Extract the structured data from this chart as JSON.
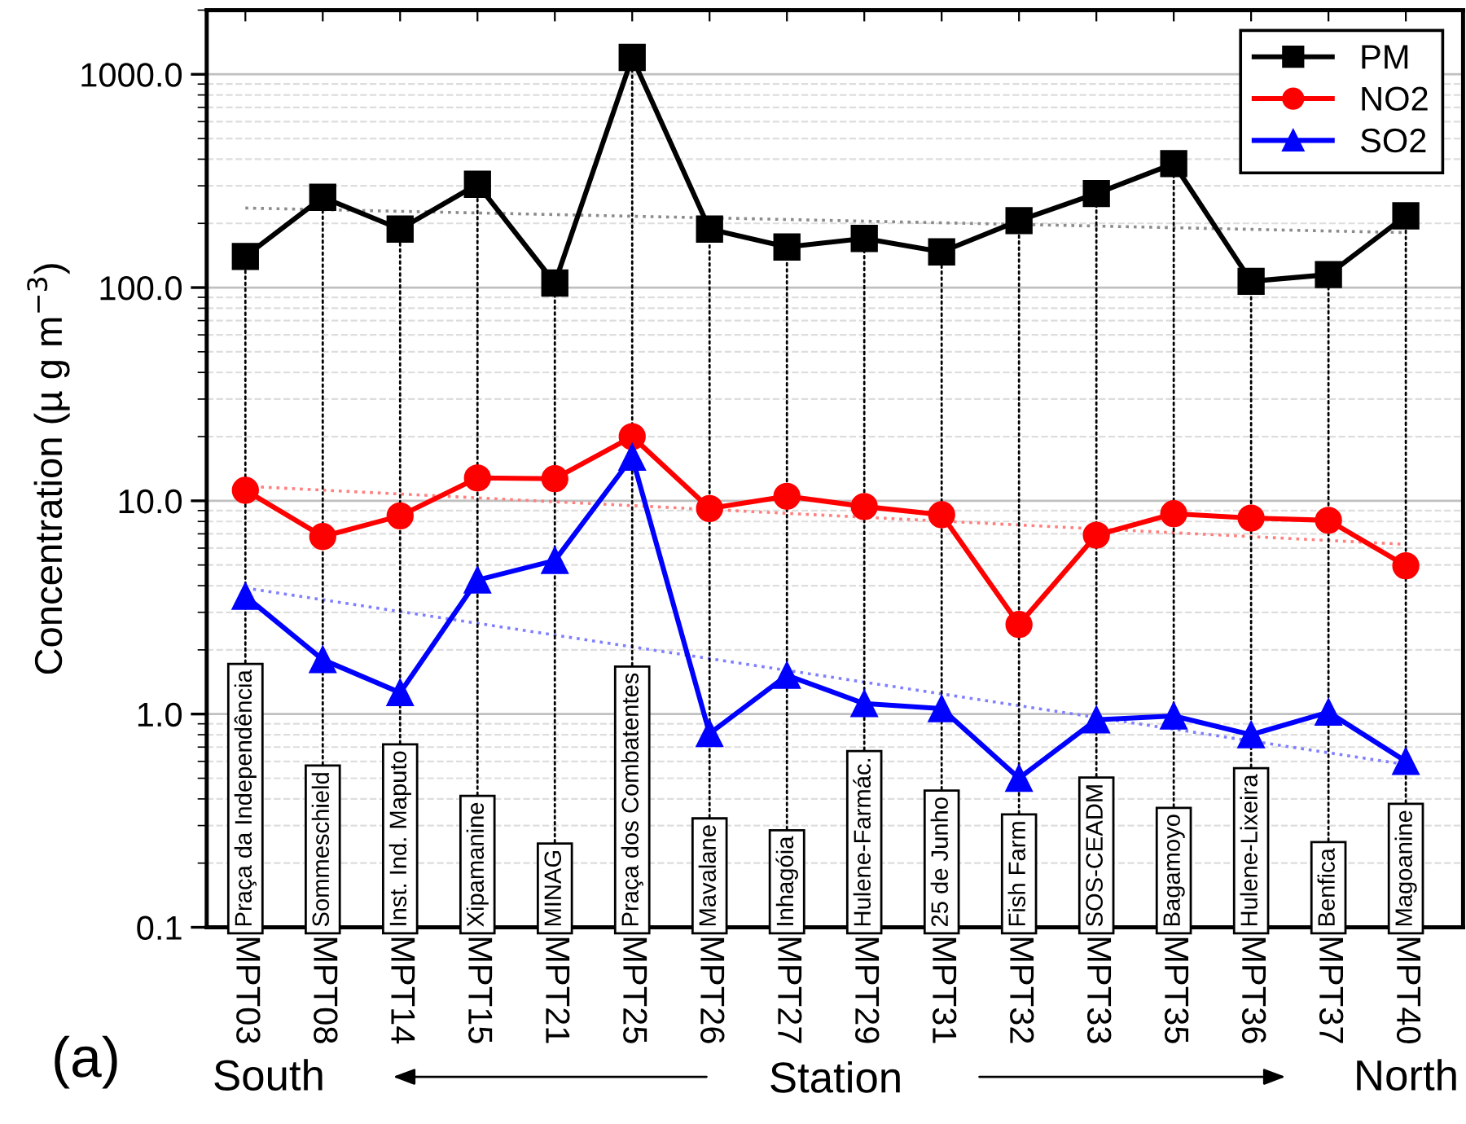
{
  "chart_data": {
    "type": "line",
    "xlabel": "Station",
    "ylabel": "Concentration (µ g m$^{−3}$)",
    "categories": [
      "MPT03",
      "MPT08",
      "MPT14",
      "MPT15",
      "MPT21",
      "MPT25",
      "MPT26",
      "MPT27",
      "MPT29",
      "MPT31",
      "MPT32",
      "MPT33",
      "MPT35",
      "MPT36",
      "MPT37",
      "MPT40"
    ],
    "series": [
      {
        "name": "PM",
        "color": "#000000",
        "marker": "square",
        "values": [
          140,
          265,
          188,
          305,
          105,
          1200,
          188,
          155,
          170,
          147,
          206,
          276,
          381,
          107,
          115,
          217
        ]
      },
      {
        "name": "NO2",
        "color": "#ff0000",
        "marker": "circle",
        "values": [
          11.2,
          6.8,
          8.5,
          12.8,
          12.7,
          20,
          9.2,
          10.5,
          9.4,
          8.6,
          2.63,
          6.9,
          8.7,
          8.3,
          8.1,
          4.96
        ]
      },
      {
        "name": "SO2",
        "color": "#0000ff",
        "marker": "triangle",
        "values": [
          3.57,
          1.8,
          1.26,
          4.25,
          5.25,
          16,
          0.81,
          1.52,
          1.12,
          1.06,
          0.5,
          0.94,
          0.98,
          0.8,
          1.02,
          0.6
        ]
      },
      {
        "type": "line",
        "color": "#8c8c8c",
        "line_style": "dotted",
        "marker": "none",
        "x": [
          "MPT03",
          "MPT40"
        ],
        "values": [
          236,
          181
        ]
      },
      {
        "type": "line",
        "color": "#ff8080",
        "line_style": "dotted",
        "marker": "none",
        "x": [
          "MPT03",
          "MPT40"
        ],
        "values": [
          11.7,
          6.25
        ]
      },
      {
        "type": "line",
        "color": "#8080ff",
        "line_style": "dotted",
        "marker": "none",
        "x": [
          "MPT03",
          "MPT40"
        ],
        "values": [
          3.9,
          0.58
        ]
      }
    ],
    "log": "y",
    "ylim": [
      0.1,
      2000
    ],
    "yticks": [
      {
        "value": 0.1,
        "label": "0.1"
      },
      {
        "value": 1,
        "label": "1.0"
      },
      {
        "value": 10,
        "label": "10.0"
      },
      {
        "value": 100,
        "label": "100.0"
      },
      {
        "value": 1000,
        "label": "1000.0"
      }
    ],
    "grid": "y",
    "legend": "top right",
    "line_style": "solid",
    "annotations": [
      {
        "text": "Praça da Independência",
        "x": "MPT03"
      },
      {
        "text": "Sommeschield",
        "x": "MPT08"
      },
      {
        "text": "Inst. Ind. Maputo",
        "x": "MPT14"
      },
      {
        "text": "Xipamanine",
        "x": "MPT15"
      },
      {
        "text": "MINAG",
        "x": "MPT21"
      },
      {
        "text": "Praça dos Combatentes",
        "x": "MPT25"
      },
      {
        "text": "Mavalane",
        "x": "MPT26"
      },
      {
        "text": "Inhagóia",
        "x": "MPT27"
      },
      {
        "text": "Hulene-Farmác.",
        "x": "MPT29"
      },
      {
        "text": "25 de Junho",
        "x": "MPT31"
      },
      {
        "text": "Fish Farm",
        "x": "MPT32"
      },
      {
        "text": "SOS-CEADM",
        "x": "MPT33"
      },
      {
        "text": "Bagamoyo",
        "x": "MPT35"
      },
      {
        "text": "Hulene-Lixeira",
        "x": "MPT36"
      },
      {
        "text": "Benfica",
        "x": "MPT37"
      },
      {
        "text": "Magoanine",
        "x": "MPT40"
      },
      "(a)",
      "South",
      "North"
    ]
  }
}
